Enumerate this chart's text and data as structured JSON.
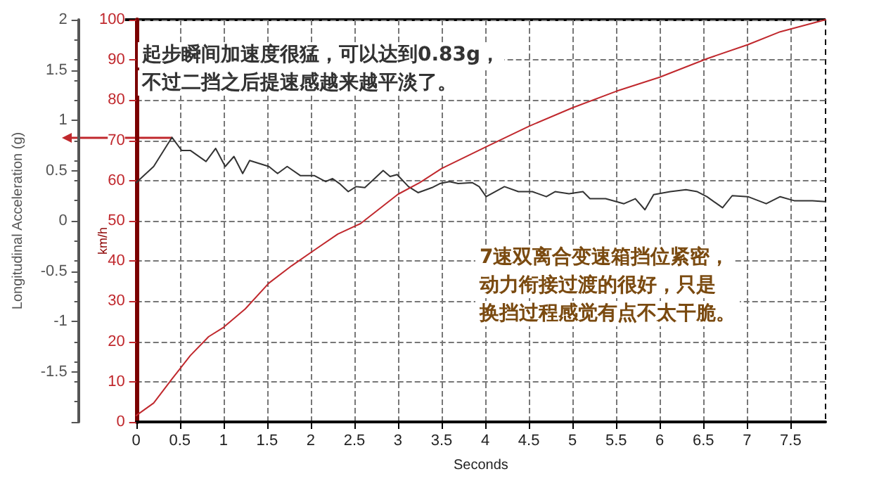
{
  "chart_data": {
    "type": "line",
    "xlabel": "Seconds",
    "ylabel": "Longitudinal Acceleration (g)",
    "y2label": "km/h",
    "annotations": [
      "起步瞬间加速度很猛，可以达到0.83g，",
      "不过二挡之后提速感越来越平淡了。",
      "7速双离合变速箱挡位紧密，",
      "动力衔接过渡的很好，只是",
      "换挡过程感觉有点不太干脆。"
    ],
    "xlim": [
      0,
      7.9
    ],
    "xticks": [
      0,
      0.5,
      1,
      1.5,
      2,
      2.5,
      3,
      3.5,
      4,
      4.5,
      5,
      5.5,
      6,
      6.5,
      7,
      7.5
    ],
    "ylim": [
      -2,
      2
    ],
    "yticks": [
      {
        "value": -2,
        "label": null
      },
      -1.5,
      -1,
      -0.5,
      0,
      0.5,
      1,
      1.5,
      2
    ],
    "y2lim": [
      0,
      100
    ],
    "y2ticks": [
      0,
      10,
      20,
      30,
      40,
      50,
      60,
      70,
      80,
      90,
      100
    ],
    "grid": true,
    "marker": "none",
    "line_style": "solid",
    "series": [
      {
        "color": "#333333",
        "x": [
          0,
          0.2,
          0.41,
          0.52,
          0.62,
          0.8,
          0.91,
          1.02,
          1.12,
          1.22,
          1.3,
          1.52,
          1.62,
          1.73,
          1.88,
          2.04,
          2.17,
          2.25,
          2.33,
          2.43,
          2.52,
          2.62,
          2.83,
          2.91,
          2.99,
          3.12,
          3.23,
          3.39,
          3.48,
          3.59,
          3.69,
          3.85,
          3.93,
          4.01,
          4.22,
          4.38,
          4.54,
          4.7,
          4.8,
          4.96,
          5.12,
          5.2,
          5.38,
          5.59,
          5.72,
          5.83,
          5.93,
          6.12,
          6.3,
          6.43,
          6.54,
          6.72,
          6.83,
          7.01,
          7.22,
          7.38,
          7.54,
          7.75,
          7.9
        ],
        "values": [
          0.38,
          0.54,
          0.83,
          0.7,
          0.7,
          0.59,
          0.72,
          0.54,
          0.64,
          0.47,
          0.6,
          0.54,
          0.47,
          0.54,
          0.45,
          0.45,
          0.39,
          0.42,
          0.37,
          0.29,
          0.34,
          0.33,
          0.5,
          0.44,
          0.46,
          0.34,
          0.28,
          0.33,
          0.37,
          0.39,
          0.37,
          0.38,
          0.34,
          0.24,
          0.34,
          0.29,
          0.29,
          0.24,
          0.29,
          0.27,
          0.29,
          0.22,
          0.22,
          0.17,
          0.22,
          0.11,
          0.26,
          0.29,
          0.31,
          0.29,
          0.24,
          0.13,
          0.25,
          0.24,
          0.17,
          0.24,
          0.2,
          0.2,
          0.19
        ]
      },
      {
        "color": "#c0282d",
        "axis": "y2",
        "x": [
          0,
          0.2,
          0.41,
          0.62,
          0.83,
          1.0,
          1.25,
          1.52,
          1.78,
          2.04,
          2.31,
          2.57,
          2.83,
          3.0,
          3.25,
          3.5,
          4.0,
          4.5,
          5.0,
          5.5,
          6.0,
          6.54,
          7.01,
          7.38,
          7.9
        ],
        "values": [
          1.6,
          4.7,
          10.7,
          16.5,
          21.2,
          23.5,
          28.1,
          34.5,
          38.8,
          42.7,
          46.7,
          49.3,
          53.7,
          56.6,
          59.5,
          63,
          68.3,
          73.5,
          78.1,
          82.2,
          85.7,
          90.3,
          93.8,
          97,
          100
        ]
      }
    ]
  }
}
